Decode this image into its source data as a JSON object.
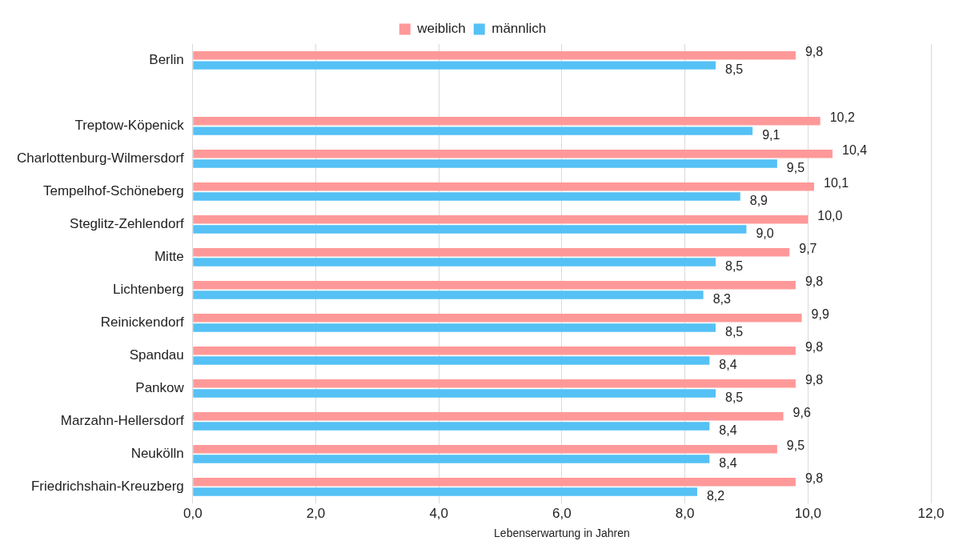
{
  "chart_data": {
    "type": "bar",
    "orientation": "horizontal",
    "xlabel": "Lebenserwartung in Jahren",
    "categories": [
      "Berlin",
      null,
      "Treptow-Köpenick",
      "Charlottenburg-Wilmersdorf",
      "Tempelhof-Schöneberg",
      "Steglitz-Zehlendorf",
      "Mitte",
      "Lichtenberg",
      "Reinickendorf",
      "Spandau",
      "Pankow",
      "Marzahn-Hellersdorf",
      "Neukölln",
      "Friedrichshain-Kreuzberg"
    ],
    "series": [
      {
        "name": "weiblich",
        "color": "#ff9999",
        "values": [
          9.8,
          null,
          10.2,
          10.4,
          10.1,
          10.0,
          9.7,
          9.8,
          9.9,
          9.8,
          9.8,
          9.6,
          9.5,
          9.8
        ],
        "value_labels": [
          "9,8",
          null,
          "10,2",
          "10,4",
          "10,1",
          "10,0",
          "9,7",
          "9,8",
          "9,9",
          "9,8",
          "9,8",
          "9,6",
          "9,5",
          "9,8"
        ]
      },
      {
        "name": "männlich",
        "color": "#55c1f5",
        "values": [
          8.5,
          null,
          9.1,
          9.5,
          8.9,
          9.0,
          8.5,
          8.3,
          8.5,
          8.4,
          8.5,
          8.4,
          8.4,
          8.2
        ],
        "value_labels": [
          "8,5",
          null,
          "9,1",
          "9,5",
          "8,9",
          "9,0",
          "8,5",
          "8,3",
          "8,5",
          "8,4",
          "8,5",
          "8,4",
          "8,4",
          "8,2"
        ]
      }
    ],
    "xlim": [
      0,
      12
    ],
    "xticks": [
      {
        "value": 0,
        "label": "0,0"
      },
      {
        "value": 2,
        "label": "2,0"
      },
      {
        "value": 4,
        "label": "4,0"
      },
      {
        "value": 6,
        "label": "6,0"
      },
      {
        "value": 8,
        "label": "8,0"
      },
      {
        "value": 10,
        "label": "10,0"
      },
      {
        "value": 12,
        "label": "12,0"
      }
    ],
    "grid": "x",
    "legend": "top"
  }
}
